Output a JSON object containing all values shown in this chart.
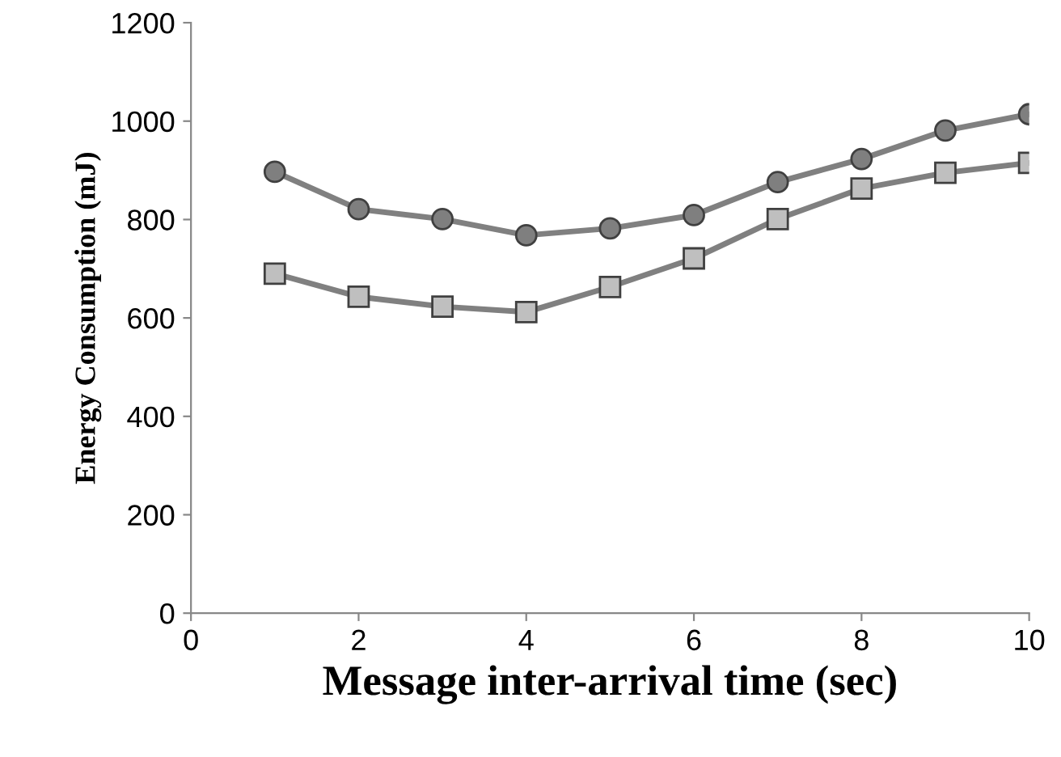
{
  "chart_data": {
    "type": "line",
    "xlabel": "Message inter-arrival time (sec)",
    "ylabel": "Energy Consumption (mJ)",
    "x": [
      1,
      2,
      3,
      4,
      5,
      6,
      7,
      8,
      9,
      10
    ],
    "series": [
      {
        "color": "#7f7f7f",
        "marker": "circle",
        "values": [
          897,
          821,
          801,
          768,
          782,
          809,
          876,
          923,
          981,
          1014
        ]
      },
      {
        "color": "#bfbfbf",
        "marker": "square",
        "values": [
          690,
          643,
          623,
          612,
          663,
          721,
          801,
          863,
          895,
          915
        ]
      }
    ],
    "xlim": [
      0,
      10
    ],
    "xticks": [
      0,
      2,
      4,
      6,
      8,
      10
    ],
    "ylim": [
      0,
      1200
    ],
    "yticks": [
      0,
      200,
      400,
      600,
      800,
      1000,
      1200
    ],
    "grid": false,
    "legend": false,
    "line_style": "solid"
  }
}
